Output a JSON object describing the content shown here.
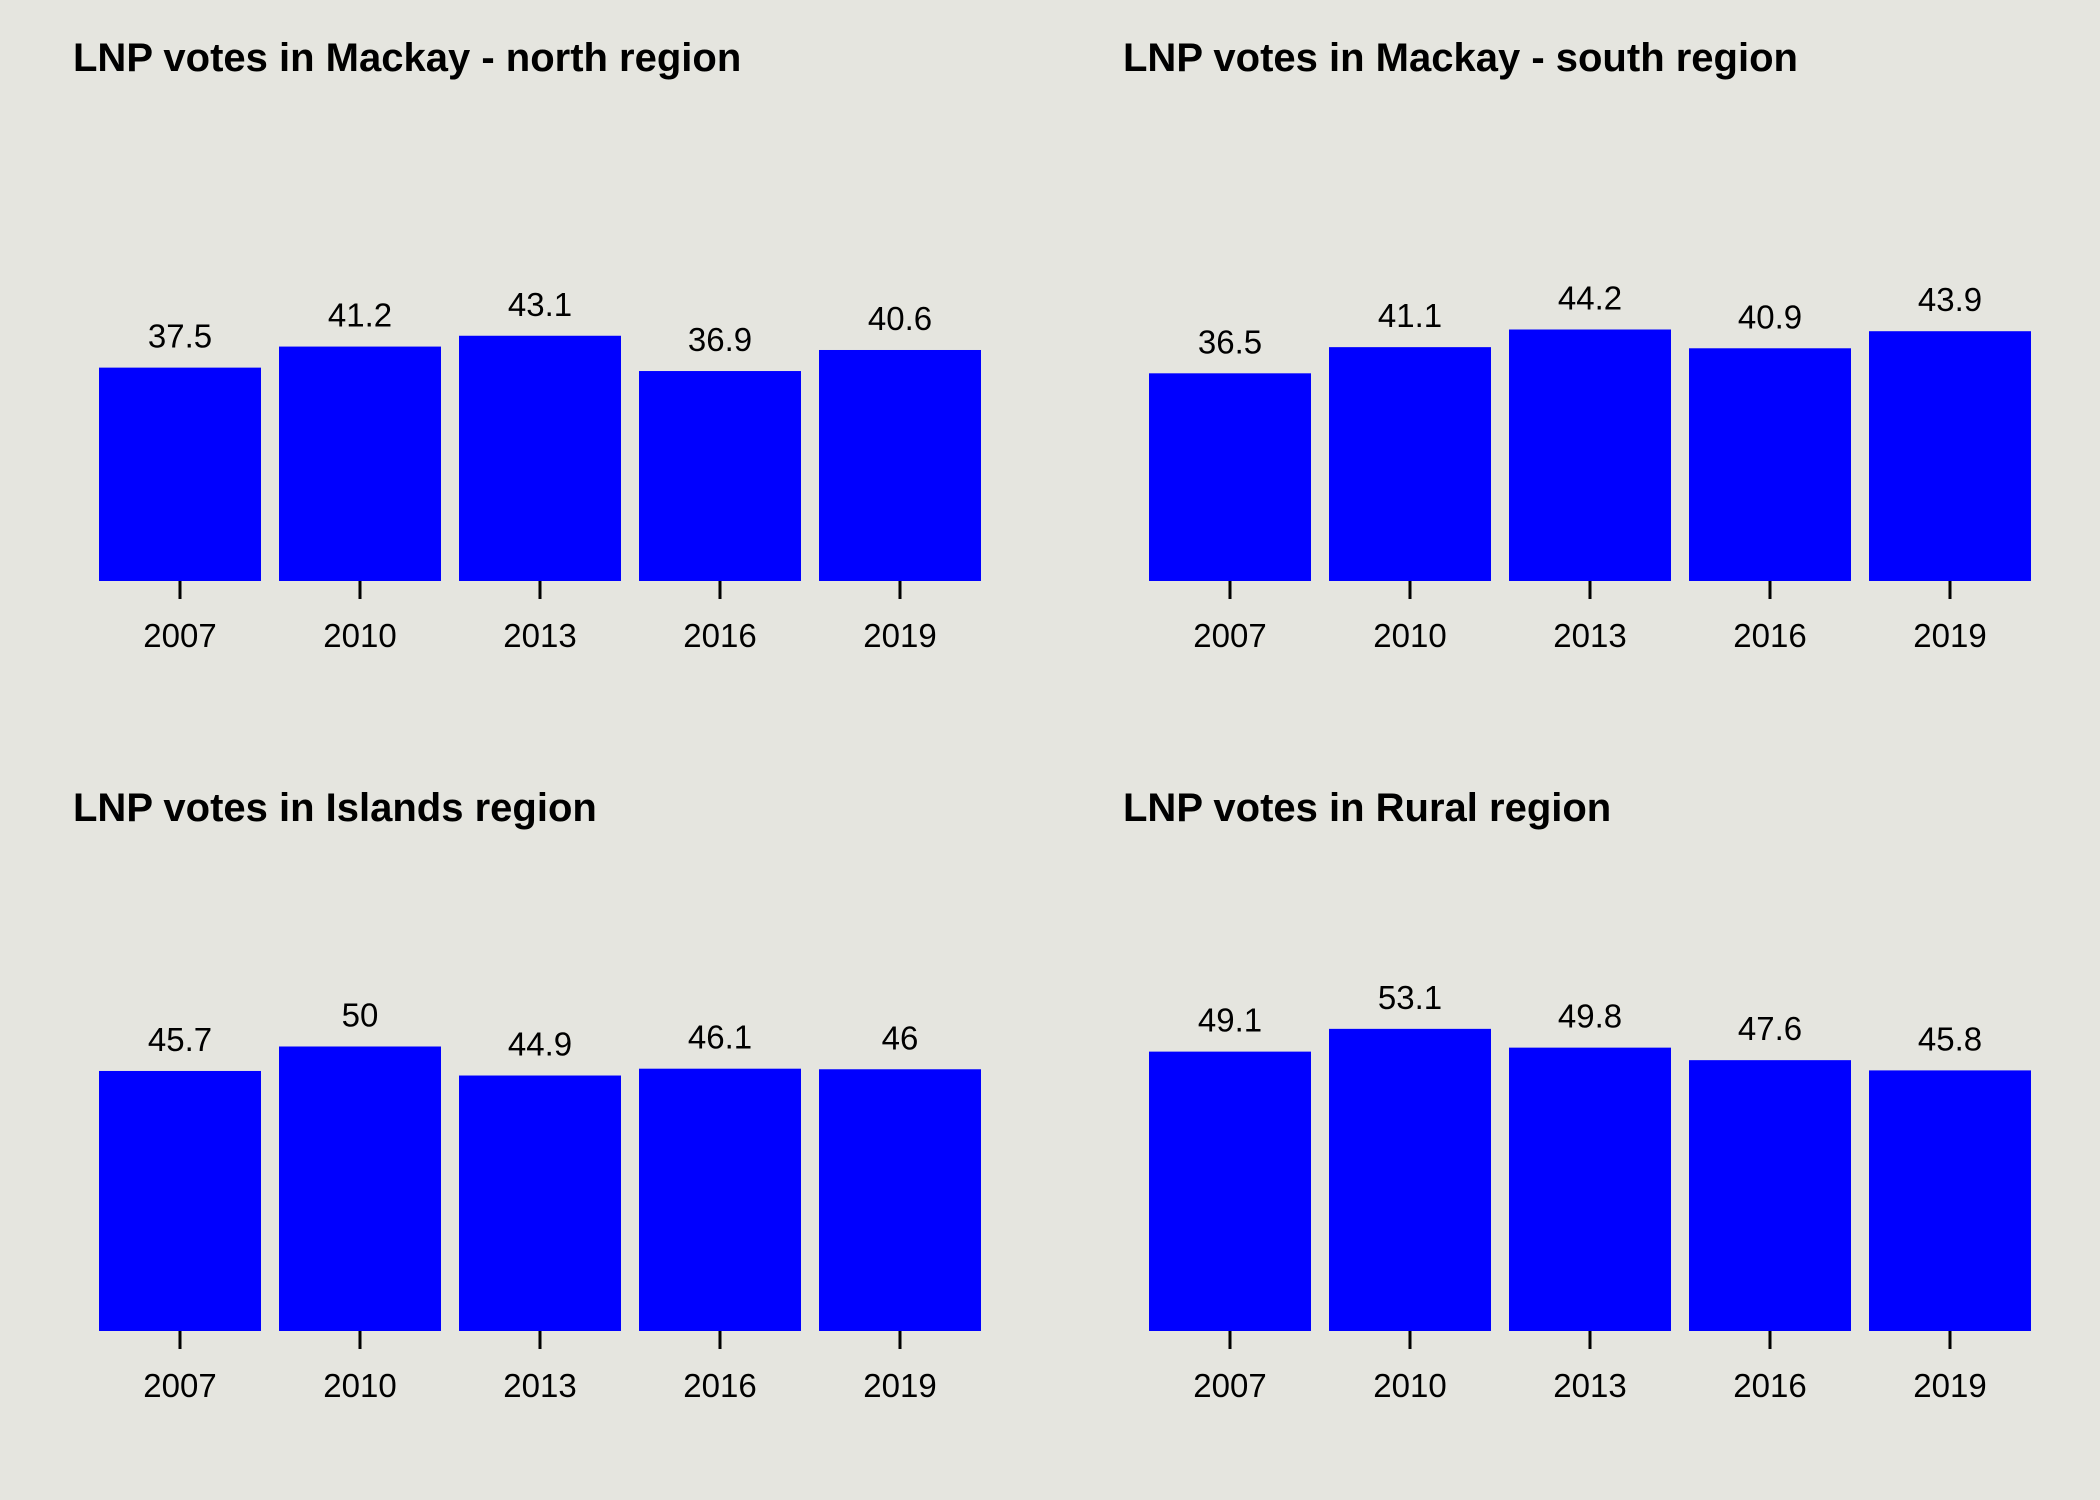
{
  "colors": {
    "bar": "#0000ff",
    "background": "#e5e5df",
    "axis": "#000000"
  },
  "chart_data": [
    {
      "type": "bar",
      "title": "LNP votes in Mackay - north region",
      "categories": [
        "2007",
        "2010",
        "2013",
        "2016",
        "2019"
      ],
      "values": [
        37.5,
        41.2,
        43.1,
        36.9,
        40.6
      ],
      "value_labels": [
        "37.5",
        "41.2",
        "43.1",
        "36.9",
        "40.6"
      ],
      "ylim": [
        0,
        100
      ],
      "grid": false,
      "legend": "none"
    },
    {
      "type": "bar",
      "title": "LNP votes in Mackay - south region",
      "categories": [
        "2007",
        "2010",
        "2013",
        "2016",
        "2019"
      ],
      "values": [
        36.5,
        41.1,
        44.2,
        40.9,
        43.9
      ],
      "value_labels": [
        "36.5",
        "41.1",
        "44.2",
        "40.9",
        "43.9"
      ],
      "ylim": [
        0,
        100
      ],
      "grid": false,
      "legend": "none"
    },
    {
      "type": "bar",
      "title": "LNP votes in Islands region",
      "categories": [
        "2007",
        "2010",
        "2013",
        "2016",
        "2019"
      ],
      "values": [
        45.7,
        50,
        44.9,
        46.1,
        46
      ],
      "value_labels": [
        "45.7",
        "50",
        "44.9",
        "46.1",
        "46"
      ],
      "ylim": [
        0,
        100
      ],
      "grid": false,
      "legend": "none"
    },
    {
      "type": "bar",
      "title": "LNP votes in Rural region",
      "categories": [
        "2007",
        "2010",
        "2013",
        "2016",
        "2019"
      ],
      "values": [
        49.1,
        53.1,
        49.8,
        47.6,
        45.8
      ],
      "value_labels": [
        "49.1",
        "53.1",
        "49.8",
        "47.6",
        "45.8"
      ],
      "ylim": [
        0,
        100
      ],
      "grid": false,
      "legend": "none"
    }
  ]
}
